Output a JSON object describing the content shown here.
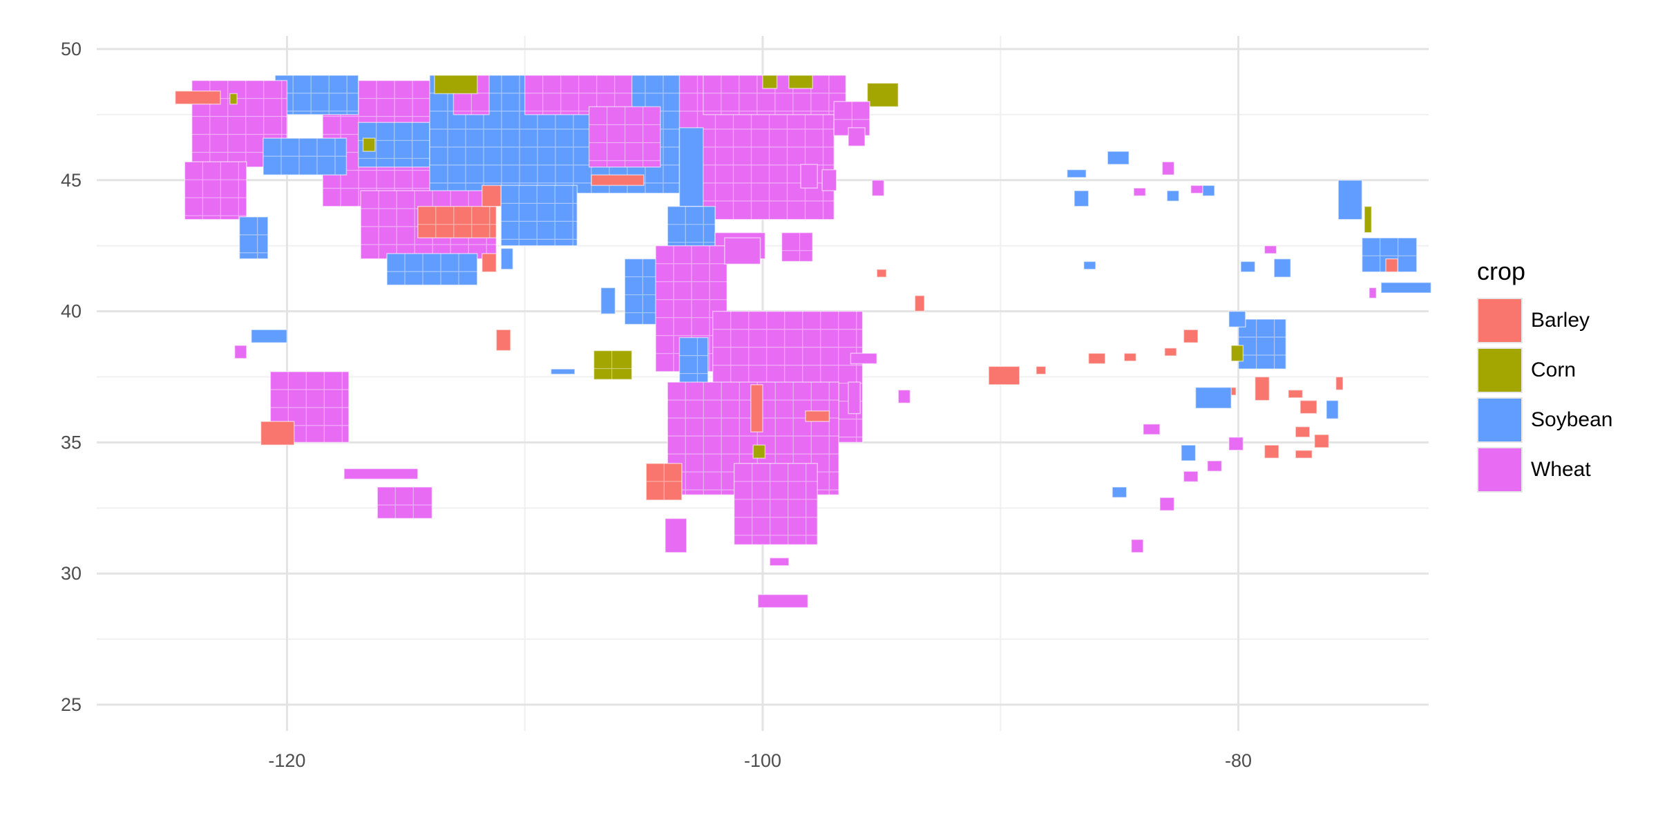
{
  "chart_data": {
    "type": "map",
    "xlabel": "",
    "ylabel": "",
    "xlim": [
      -128,
      -72
    ],
    "ylim": [
      24,
      50.5
    ],
    "x_ticks": [
      -120,
      -100,
      -80
    ],
    "y_ticks": [
      25,
      30,
      35,
      40,
      45,
      50
    ],
    "x_tick_labels": [
      "-120",
      "-100",
      "-80"
    ],
    "y_tick_labels": [
      "25",
      "30",
      "35",
      "40",
      "45",
      "50"
    ],
    "grid": true,
    "legend_placement": "right",
    "legend": {
      "title": "crop",
      "entries": [
        {
          "label": "Barley",
          "color": "#F8766D"
        },
        {
          "label": "Corn",
          "color": "#A3A500"
        },
        {
          "label": "Soybean",
          "color": "#619CFF"
        },
        {
          "label": "Wheat",
          "color": "#E76BF3"
        }
      ]
    },
    "regions": [
      {
        "crop": "Wheat",
        "lon": [
          -118.5,
          -112
        ],
        "lat": [
          44,
          48.8
        ]
      },
      {
        "crop": "Soybean",
        "lon": [
          -120.5,
          -117
        ],
        "lat": [
          47.5,
          49
        ]
      },
      {
        "crop": "Wheat",
        "lon": [
          -124,
          -120
        ],
        "lat": [
          45.5,
          48.8
        ]
      },
      {
        "crop": "Barley",
        "lon": [
          -124.7,
          -122.8
        ],
        "lat": [
          47.9,
          48.4
        ]
      },
      {
        "crop": "Corn",
        "lon": [
          -122.4,
          -122.1
        ],
        "lat": [
          47.9,
          48.3
        ]
      },
      {
        "crop": "Soybean",
        "lon": [
          -121,
          -117.5
        ],
        "lat": [
          45.2,
          46.6
        ]
      },
      {
        "crop": "Soybean",
        "lon": [
          -117,
          -114
        ],
        "lat": [
          45.5,
          47.2
        ]
      },
      {
        "crop": "Soybean",
        "lon": [
          -114,
          -103
        ],
        "lat": [
          44.5,
          49
        ]
      },
      {
        "crop": "Wheat",
        "lon": [
          -113,
          -111.5
        ],
        "lat": [
          47.5,
          49
        ]
      },
      {
        "crop": "Wheat",
        "lon": [
          -110,
          -105.5
        ],
        "lat": [
          47.5,
          49
        ]
      },
      {
        "crop": "Corn",
        "lon": [
          -113.8,
          -112
        ],
        "lat": [
          48.3,
          49
        ]
      },
      {
        "crop": "Wheat",
        "lon": [
          -107.3,
          -104.3
        ],
        "lat": [
          45.5,
          47.8
        ]
      },
      {
        "crop": "Barley",
        "lon": [
          -107.2,
          -105
        ],
        "lat": [
          44.8,
          45.2
        ]
      },
      {
        "crop": "Corn",
        "lon": [
          -116.8,
          -116.3
        ],
        "lat": [
          46.1,
          46.6
        ]
      },
      {
        "crop": "Wheat",
        "lon": [
          -103.5,
          -97
        ],
        "lat": [
          43.5,
          49
        ]
      },
      {
        "crop": "Soybean",
        "lon": [
          -103.5,
          -102.5
        ],
        "lat": [
          44,
          47
        ]
      },
      {
        "crop": "Wheat",
        "lon": [
          -102.5,
          -96.5
        ],
        "lat": [
          47.5,
          49
        ]
      },
      {
        "crop": "Corn",
        "lon": [
          -100,
          -99.4
        ],
        "lat": [
          48.5,
          49
        ]
      },
      {
        "crop": "Corn",
        "lon": [
          -98.9,
          -97.9
        ],
        "lat": [
          48.5,
          49
        ]
      },
      {
        "crop": "Corn",
        "lon": [
          -95.6,
          -94.3
        ],
        "lat": [
          47.8,
          48.7
        ]
      },
      {
        "crop": "Wheat",
        "lon": [
          -97,
          -95.5
        ],
        "lat": [
          46.7,
          48
        ]
      },
      {
        "crop": "Wheat",
        "lon": [
          -124.3,
          -121.7
        ],
        "lat": [
          43.5,
          45.7
        ]
      },
      {
        "crop": "Soybean",
        "lon": [
          -122,
          -120.8
        ],
        "lat": [
          42,
          43.6
        ]
      },
      {
        "crop": "Wheat",
        "lon": [
          -116.9,
          -111.2
        ],
        "lat": [
          42,
          44.6
        ]
      },
      {
        "crop": "Barley",
        "lon": [
          -114.5,
          -111.2
        ],
        "lat": [
          42.8,
          44
        ]
      },
      {
        "crop": "Barley",
        "lon": [
          -111.8,
          -111
        ],
        "lat": [
          44,
          44.8
        ]
      },
      {
        "crop": "Soybean",
        "lon": [
          -115.8,
          -112
        ],
        "lat": [
          41,
          42.2
        ]
      },
      {
        "crop": "Soybean",
        "lon": [
          -111,
          -107.8
        ],
        "lat": [
          42.5,
          44.8
        ]
      },
      {
        "crop": "Soybean",
        "lon": [
          -111,
          -110.5
        ],
        "lat": [
          41.6,
          42.4
        ]
      },
      {
        "crop": "Barley",
        "lon": [
          -111.8,
          -111.2
        ],
        "lat": [
          41.5,
          42.2
        ]
      },
      {
        "crop": "Soybean",
        "lon": [
          -104,
          -102
        ],
        "lat": [
          42.1,
          44
        ]
      },
      {
        "crop": "Wheat",
        "lon": [
          -102,
          -99.9
        ],
        "lat": [
          42,
          43
        ]
      },
      {
        "crop": "Wheat",
        "lon": [
          -99.2,
          -97.9
        ],
        "lat": [
          41.9,
          43
        ]
      },
      {
        "crop": "Soybean",
        "lon": [
          -105.8,
          -102
        ],
        "lat": [
          39.5,
          42
        ]
      },
      {
        "crop": "Wheat",
        "lon": [
          -104.5,
          -101.5
        ],
        "lat": [
          37.7,
          42.5
        ]
      },
      {
        "crop": "Soybean",
        "lon": [
          -103.5,
          -102.3
        ],
        "lat": [
          35,
          39
        ]
      },
      {
        "crop": "Soybean",
        "lon": [
          -106.8,
          -106.2
        ],
        "lat": [
          39.9,
          40.9
        ]
      },
      {
        "crop": "Corn",
        "lon": [
          -107.1,
          -105.5
        ],
        "lat": [
          37.4,
          38.5
        ]
      },
      {
        "crop": "Soybean",
        "lon": [
          -108.9,
          -107.9
        ],
        "lat": [
          37.6,
          37.8
        ]
      },
      {
        "crop": "Wheat",
        "lon": [
          -102.1,
          -95.8
        ],
        "lat": [
          35,
          40
        ]
      },
      {
        "crop": "Wheat",
        "lon": [
          -104,
          -96.8
        ],
        "lat": [
          33,
          37.3
        ]
      },
      {
        "crop": "Barley",
        "lon": [
          -100.5,
          -100
        ],
        "lat": [
          35.4,
          37.2
        ]
      },
      {
        "crop": "Barley",
        "lon": [
          -98.2,
          -97.2
        ],
        "lat": [
          35.8,
          36.2
        ]
      },
      {
        "crop": "Corn",
        "lon": [
          -100.4,
          -99.9
        ],
        "lat": [
          34.4,
          34.9
        ]
      },
      {
        "crop": "Wheat",
        "lon": [
          -101.2,
          -97.7
        ],
        "lat": [
          31.1,
          34.2
        ]
      },
      {
        "crop": "Barley",
        "lon": [
          -104.9,
          -103.4
        ],
        "lat": [
          32.8,
          34.2
        ]
      },
      {
        "crop": "Wheat",
        "lon": [
          -104.1,
          -103.2
        ],
        "lat": [
          30.8,
          32.1
        ]
      },
      {
        "crop": "Wheat",
        "lon": [
          -100.2,
          -98.1
        ],
        "lat": [
          28.7,
          29.2
        ]
      },
      {
        "crop": "Wheat",
        "lon": [
          -99.7,
          -98.9
        ],
        "lat": [
          30.3,
          30.6
        ]
      },
      {
        "crop": "Barley",
        "lon": [
          -111.2,
          -110.6
        ],
        "lat": [
          38.5,
          39.3
        ]
      },
      {
        "crop": "Soybean",
        "lon": [
          -121.5,
          -120
        ],
        "lat": [
          38.8,
          39.3
        ]
      },
      {
        "crop": "Wheat",
        "lon": [
          -122.2,
          -121.7
        ],
        "lat": [
          38.2,
          38.7
        ]
      },
      {
        "crop": "Wheat",
        "lon": [
          -120.7,
          -117.4
        ],
        "lat": [
          35,
          37.7
        ]
      },
      {
        "crop": "Barley",
        "lon": [
          -121.1,
          -119.7
        ],
        "lat": [
          34.9,
          35.8
        ]
      },
      {
        "crop": "Wheat",
        "lon": [
          -117.6,
          -114.5
        ],
        "lat": [
          33.6,
          34
        ]
      },
      {
        "crop": "Wheat",
        "lon": [
          -116.2,
          -113.9
        ],
        "lat": [
          32.1,
          33.3
        ]
      },
      {
        "crop": "Wheat",
        "lon": [
          -101.6,
          -100.1
        ],
        "lat": [
          41.8,
          42.8
        ]
      },
      {
        "crop": "Wheat",
        "lon": [
          -96.3,
          -95.2
        ],
        "lat": [
          38,
          38.4
        ]
      },
      {
        "crop": "Wheat",
        "lon": [
          -96.4,
          -95.9
        ],
        "lat": [
          36.1,
          37.3
        ]
      },
      {
        "crop": "Wheat",
        "lon": [
          -94.3,
          -93.8
        ],
        "lat": [
          36.5,
          37
        ]
      },
      {
        "crop": "Barley",
        "lon": [
          -95.2,
          -94.8
        ],
        "lat": [
          41.3,
          41.6
        ]
      },
      {
        "crop": "Barley",
        "lon": [
          -93.6,
          -93.2
        ],
        "lat": [
          40,
          40.6
        ]
      },
      {
        "crop": "Wheat",
        "lon": [
          -95.4,
          -94.9
        ],
        "lat": [
          44.4,
          45
        ]
      },
      {
        "crop": "Wheat",
        "lon": [
          -98.4,
          -97.7
        ],
        "lat": [
          44.7,
          45.6
        ]
      },
      {
        "crop": "Wheat",
        "lon": [
          -97.5,
          -96.9
        ],
        "lat": [
          44.6,
          45.4
        ]
      },
      {
        "crop": "Wheat",
        "lon": [
          -96.4,
          -95.7
        ],
        "lat": [
          46.3,
          47
        ]
      },
      {
        "crop": "Soybean",
        "lon": [
          -87.2,
          -86.4
        ],
        "lat": [
          45.1,
          45.4
        ]
      },
      {
        "crop": "Soybean",
        "lon": [
          -86.9,
          -86.3
        ],
        "lat": [
          44,
          44.6
        ]
      },
      {
        "crop": "Soybean",
        "lon": [
          -85.5,
          -84.6
        ],
        "lat": [
          45.6,
          46.1
        ]
      },
      {
        "crop": "Wheat",
        "lon": [
          -83.2,
          -82.7
        ],
        "lat": [
          45.2,
          45.7
        ]
      },
      {
        "crop": "Wheat",
        "lon": [
          -84.4,
          -83.9
        ],
        "lat": [
          44.4,
          44.7
        ]
      },
      {
        "crop": "Soybean",
        "lon": [
          -83,
          -82.5
        ],
        "lat": [
          44.2,
          44.6
        ]
      },
      {
        "crop": "Wheat",
        "lon": [
          -82,
          -81.4
        ],
        "lat": [
          44.5,
          44.8
        ]
      },
      {
        "crop": "Soybean",
        "lon": [
          -81.5,
          -81
        ],
        "lat": [
          44.4,
          44.8
        ]
      },
      {
        "crop": "Soybean",
        "lon": [
          -86.5,
          -86
        ],
        "lat": [
          41.6,
          41.9
        ]
      },
      {
        "crop": "Barley",
        "lon": [
          -90.5,
          -89.2
        ],
        "lat": [
          37.2,
          37.9
        ]
      },
      {
        "crop": "Barley",
        "lon": [
          -88.5,
          -88.1
        ],
        "lat": [
          37.6,
          37.9
        ]
      },
      {
        "crop": "Barley",
        "lon": [
          -86.3,
          -85.6
        ],
        "lat": [
          38,
          38.4
        ]
      },
      {
        "crop": "Barley",
        "lon": [
          -84.8,
          -84.3
        ],
        "lat": [
          38.1,
          38.4
        ]
      },
      {
        "crop": "Barley",
        "lon": [
          -83.1,
          -82.6
        ],
        "lat": [
          38.3,
          38.6
        ]
      },
      {
        "crop": "Barley",
        "lon": [
          -82.3,
          -81.7
        ],
        "lat": [
          38.8,
          39.3
        ]
      },
      {
        "crop": "Barley",
        "lon": [
          -80.7,
          -80.1
        ],
        "lat": [
          36.8,
          37.1
        ]
      },
      {
        "crop": "Wheat",
        "lon": [
          -84,
          -83.3
        ],
        "lat": [
          35.3,
          35.7
        ]
      },
      {
        "crop": "Soybean",
        "lon": [
          -82.4,
          -81.8
        ],
        "lat": [
          34.3,
          34.9
        ]
      },
      {
        "crop": "Wheat",
        "lon": [
          -82.3,
          -81.7
        ],
        "lat": [
          33.5,
          33.9
        ]
      },
      {
        "crop": "Wheat",
        "lon": [
          -81.3,
          -80.7
        ],
        "lat": [
          33.9,
          34.3
        ]
      },
      {
        "crop": "Soybean",
        "lon": [
          -85.3,
          -84.7
        ],
        "lat": [
          32.9,
          33.3
        ]
      },
      {
        "crop": "Wheat",
        "lon": [
          -84.5,
          -84
        ],
        "lat": [
          30.8,
          31.3
        ]
      },
      {
        "crop": "Wheat",
        "lon": [
          -83.3,
          -82.7
        ],
        "lat": [
          32.4,
          32.9
        ]
      },
      {
        "crop": "Wheat",
        "lon": [
          -80.4,
          -79.8
        ],
        "lat": [
          34.7,
          35.2
        ]
      },
      {
        "crop": "Soybean",
        "lon": [
          -81.8,
          -80.3
        ],
        "lat": [
          36.3,
          37.1
        ]
      },
      {
        "crop": "Soybean",
        "lon": [
          -80,
          -78
        ],
        "lat": [
          37.8,
          39.7
        ]
      },
      {
        "crop": "Soybean",
        "lon": [
          -80.4,
          -79.7
        ],
        "lat": [
          39.4,
          40
        ]
      },
      {
        "crop": "Corn",
        "lon": [
          -80.3,
          -79.8
        ],
        "lat": [
          38.1,
          38.7
        ]
      },
      {
        "crop": "Barley",
        "lon": [
          -79.3,
          -78.7
        ],
        "lat": [
          36.6,
          37.5
        ]
      },
      {
        "crop": "Barley",
        "lon": [
          -77.9,
          -77.3
        ],
        "lat": [
          36.7,
          37
        ]
      },
      {
        "crop": "Barley",
        "lon": [
          -77.4,
          -76.7
        ],
        "lat": [
          36.1,
          36.6
        ]
      },
      {
        "crop": "Barley",
        "lon": [
          -77.6,
          -77
        ],
        "lat": [
          35.2,
          35.6
        ]
      },
      {
        "crop": "Barley",
        "lon": [
          -76.8,
          -76.2
        ],
        "lat": [
          34.8,
          35.3
        ]
      },
      {
        "crop": "Barley",
        "lon": [
          -78.9,
          -78.3
        ],
        "lat": [
          34.4,
          34.9
        ]
      },
      {
        "crop": "Barley",
        "lon": [
          -77.6,
          -76.9
        ],
        "lat": [
          34.4,
          34.7
        ]
      },
      {
        "crop": "Soybean",
        "lon": [
          -76.3,
          -75.8
        ],
        "lat": [
          35.9,
          36.6
        ]
      },
      {
        "crop": "Barley",
        "lon": [
          -75.9,
          -75.6
        ],
        "lat": [
          37,
          37.5
        ]
      },
      {
        "crop": "Wheat",
        "lon": [
          -78.9,
          -78.4
        ],
        "lat": [
          42.2,
          42.5
        ]
      },
      {
        "crop": "Soybean",
        "lon": [
          -78.5,
          -77.8
        ],
        "lat": [
          41.3,
          42
        ]
      },
      {
        "crop": "Soybean",
        "lon": [
          -79.9,
          -79.3
        ],
        "lat": [
          41.5,
          41.9
        ]
      },
      {
        "crop": "Soybean",
        "lon": [
          -75.8,
          -74.8
        ],
        "lat": [
          43.5,
          45
        ]
      },
      {
        "crop": "Corn",
        "lon": [
          -74.7,
          -74.4
        ],
        "lat": [
          43,
          44
        ]
      },
      {
        "crop": "Soybean",
        "lon": [
          -74.8,
          -72.5
        ],
        "lat": [
          41.5,
          42.8
        ]
      },
      {
        "crop": "Barley",
        "lon": [
          -73.8,
          -73.3
        ],
        "lat": [
          41.5,
          42
        ]
      },
      {
        "crop": "Soybean",
        "lon": [
          -74,
          -71.9
        ],
        "lat": [
          40.7,
          41.1
        ]
      },
      {
        "crop": "Wheat",
        "lon": [
          -74.5,
          -74.2
        ],
        "lat": [
          40.5,
          40.9
        ]
      }
    ]
  }
}
